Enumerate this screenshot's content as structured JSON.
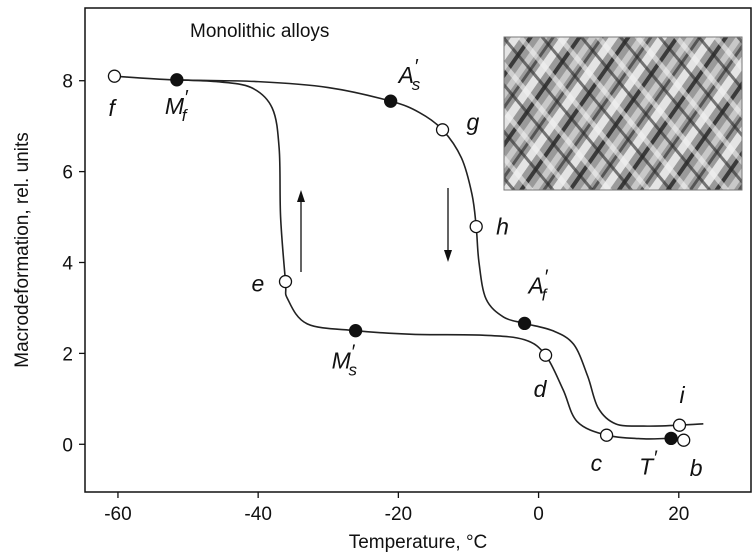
{
  "chart_data": {
    "type": "line",
    "xlabel": "Temperature, °C",
    "ylabel": "Macrodeformation, rel. units",
    "annotation": "Monolithic alloys",
    "xlim": [
      -64.7,
      30.3
    ],
    "ylim": [
      -1.05,
      9.6
    ],
    "xticks": [
      -60,
      -40,
      -20,
      0,
      20
    ],
    "yticks": [
      0,
      2,
      4,
      6,
      8
    ],
    "grid": false,
    "series": [
      {
        "color": "#222222",
        "x": [
          -60.5,
          -52,
          -40,
          -30,
          -21.1,
          -17,
          -13.7,
          -11,
          -9.5,
          -8.9,
          -8.5,
          -7.5,
          -5,
          -2,
          2,
          5,
          7,
          8.5,
          11,
          15,
          20.1,
          23.5
        ],
        "values": [
          8.1,
          8.02,
          7.98,
          7.85,
          7.55,
          7.3,
          6.92,
          6.3,
          5.5,
          4.79,
          4.0,
          3.2,
          2.8,
          2.66,
          2.5,
          2.2,
          1.5,
          0.8,
          0.45,
          0.4,
          0.42,
          0.45
        ]
      },
      {
        "color": "#222222",
        "x": [
          20.7,
          18.9,
          15,
          9.7,
          5.5,
          3.5,
          1,
          -2,
          -8,
          -18,
          -26.1,
          -33,
          -35.8,
          -36.1,
          -36.8,
          -37,
          -38,
          -41,
          -46,
          -52
        ],
        "values": [
          0.09,
          0.13,
          0.12,
          0.2,
          0.5,
          1.2,
          1.96,
          2.3,
          2.4,
          2.42,
          2.5,
          2.65,
          3.2,
          3.58,
          5,
          6.5,
          7.4,
          7.85,
          7.98,
          8.02
        ]
      }
    ],
    "points": [
      {
        "label": "f",
        "x": -60.5,
        "y": 8.1,
        "filled": false
      },
      {
        "label": "M",
        "sub": "f",
        "sup": "′",
        "x": -51.6,
        "y": 8.02,
        "filled": true
      },
      {
        "label": "A",
        "sub": "s",
        "sup": "′",
        "x": -21.1,
        "y": 7.55,
        "filled": true
      },
      {
        "label": "g",
        "x": -13.7,
        "y": 6.92,
        "filled": false
      },
      {
        "label": "h",
        "x": -8.9,
        "y": 4.79,
        "filled": false
      },
      {
        "label": "A",
        "sub": "f",
        "sup": "′",
        "x": -2.0,
        "y": 2.66,
        "filled": true
      },
      {
        "label": "i",
        "x": 20.1,
        "y": 0.42,
        "filled": false
      },
      {
        "label": "b",
        "x": 20.7,
        "y": 0.09,
        "filled": false
      },
      {
        "label": "T",
        "sup": "′",
        "x": 18.9,
        "y": 0.13,
        "filled": true
      },
      {
        "label": "c",
        "x": 9.7,
        "y": 0.2,
        "filled": false
      },
      {
        "label": "d",
        "x": 1.0,
        "y": 1.96,
        "filled": false
      },
      {
        "label": "M",
        "sub": "s",
        "sup": "′",
        "x": -26.1,
        "y": 2.5,
        "filled": true
      },
      {
        "label": "e",
        "x": -36.1,
        "y": 3.58,
        "filled": false
      }
    ]
  }
}
